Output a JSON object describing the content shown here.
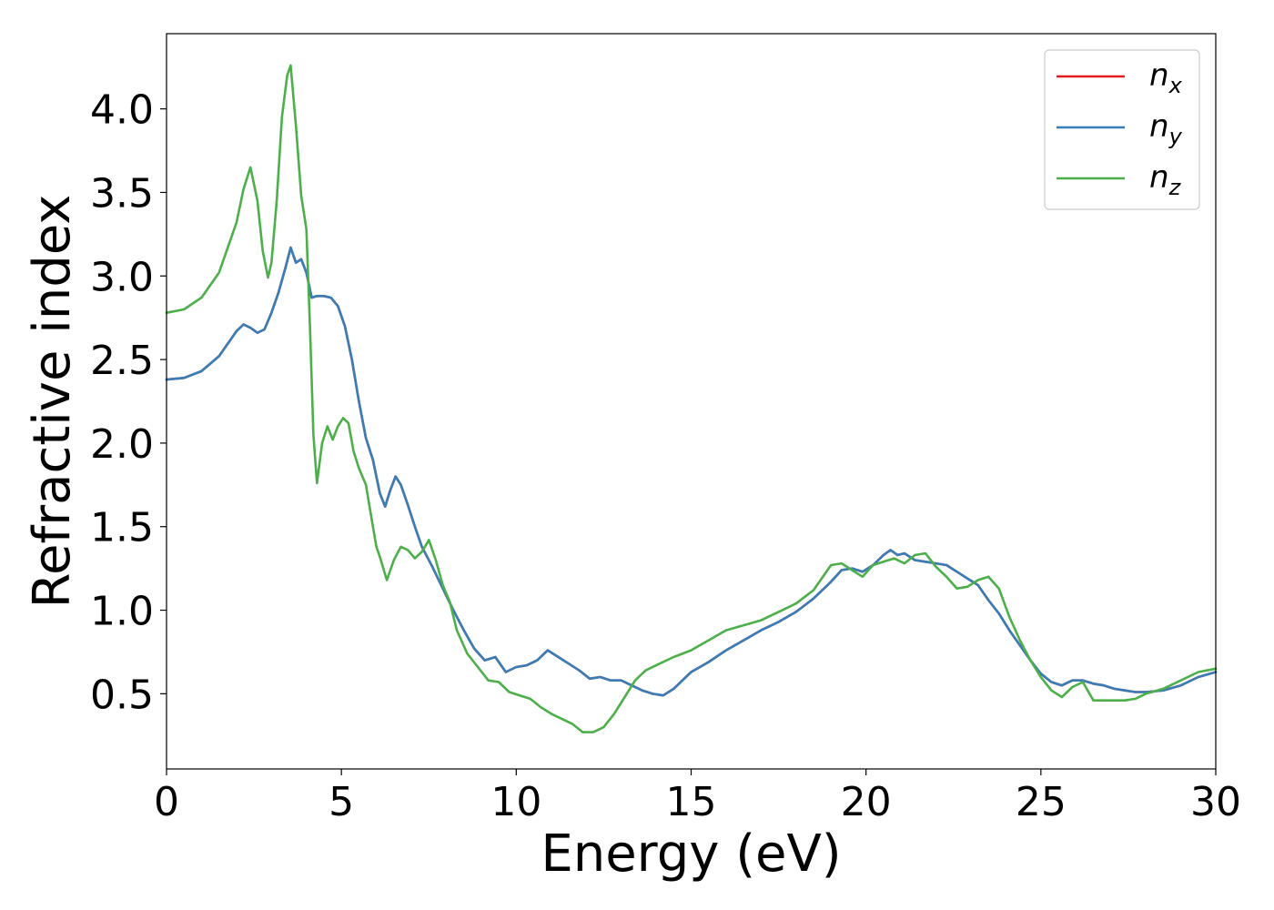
{
  "chart_data": {
    "type": "line",
    "xlabel": "Energy (eV)",
    "ylabel": "Refractive index",
    "xlim": [
      0,
      30
    ],
    "ylim": [
      0.05,
      4.45
    ],
    "xticks": [
      0,
      5,
      10,
      15,
      20,
      25,
      30
    ],
    "xtick_labels": [
      "0",
      "5",
      "10",
      "15",
      "20",
      "25",
      "30"
    ],
    "yticks": [
      0.5,
      1.0,
      1.5,
      2.0,
      2.5,
      3.0,
      3.5,
      4.0
    ],
    "ytick_labels": [
      "0.5",
      "1.0",
      "1.5",
      "2.0",
      "2.5",
      "3.0",
      "3.5",
      "4.0"
    ],
    "grid": false,
    "legend_position": "top-right",
    "series": [
      {
        "name": "n",
        "subscript": "x",
        "color": "#e41a1c",
        "x": [
          0,
          0.5,
          1,
          1.5,
          2,
          2.2,
          2.4,
          2.6,
          2.8,
          3.0,
          3.2,
          3.4,
          3.55,
          3.7,
          3.85,
          4.0,
          4.15,
          4.3,
          4.5,
          4.7,
          4.9,
          5.1,
          5.3,
          5.5,
          5.7,
          5.9,
          6.1,
          6.25,
          6.4,
          6.55,
          6.7,
          6.9,
          7.1,
          7.3,
          7.6,
          7.9,
          8.2,
          8.5,
          8.8,
          9.1,
          9.4,
          9.7,
          10.0,
          10.3,
          10.6,
          10.9,
          11.2,
          11.5,
          11.8,
          12.1,
          12.4,
          12.7,
          13.0,
          13.3,
          13.6,
          13.9,
          14.2,
          14.5,
          15.0,
          15.5,
          16.0,
          16.5,
          17.0,
          17.5,
          18.0,
          18.5,
          19.0,
          19.3,
          19.6,
          19.9,
          20.2,
          20.5,
          20.7,
          20.9,
          21.1,
          21.4,
          21.7,
          22.0,
          22.3,
          22.6,
          22.9,
          23.2,
          23.5,
          23.8,
          24.1,
          24.4,
          24.7,
          25.0,
          25.3,
          25.6,
          25.9,
          26.2,
          26.5,
          26.8,
          27.1,
          27.4,
          27.7,
          28.0,
          28.5,
          29.0,
          29.5,
          30.0
        ],
        "y": [
          2.38,
          2.39,
          2.43,
          2.52,
          2.67,
          2.71,
          2.69,
          2.66,
          2.68,
          2.78,
          2.9,
          3.05,
          3.17,
          3.08,
          3.1,
          3.02,
          2.87,
          2.88,
          2.88,
          2.87,
          2.82,
          2.7,
          2.5,
          2.25,
          2.03,
          1.9,
          1.7,
          1.62,
          1.72,
          1.8,
          1.75,
          1.63,
          1.5,
          1.38,
          1.26,
          1.13,
          1.0,
          0.88,
          0.77,
          0.7,
          0.72,
          0.63,
          0.66,
          0.67,
          0.7,
          0.76,
          0.72,
          0.68,
          0.64,
          0.59,
          0.6,
          0.58,
          0.58,
          0.55,
          0.52,
          0.5,
          0.49,
          0.53,
          0.63,
          0.69,
          0.76,
          0.82,
          0.88,
          0.93,
          0.99,
          1.07,
          1.17,
          1.24,
          1.25,
          1.23,
          1.27,
          1.33,
          1.36,
          1.33,
          1.34,
          1.3,
          1.29,
          1.28,
          1.27,
          1.23,
          1.19,
          1.15,
          1.06,
          0.98,
          0.88,
          0.79,
          0.7,
          0.62,
          0.57,
          0.55,
          0.58,
          0.58,
          0.56,
          0.55,
          0.53,
          0.52,
          0.51,
          0.51,
          0.52,
          0.55,
          0.6,
          0.63
        ]
      },
      {
        "name": "n",
        "subscript": "y",
        "color": "#377eb8",
        "x": [
          0,
          0.5,
          1,
          1.5,
          2,
          2.2,
          2.4,
          2.6,
          2.8,
          3.0,
          3.2,
          3.4,
          3.55,
          3.7,
          3.85,
          4.0,
          4.15,
          4.3,
          4.5,
          4.7,
          4.9,
          5.1,
          5.3,
          5.5,
          5.7,
          5.9,
          6.1,
          6.25,
          6.4,
          6.55,
          6.7,
          6.9,
          7.1,
          7.3,
          7.6,
          7.9,
          8.2,
          8.5,
          8.8,
          9.1,
          9.4,
          9.7,
          10.0,
          10.3,
          10.6,
          10.9,
          11.2,
          11.5,
          11.8,
          12.1,
          12.4,
          12.7,
          13.0,
          13.3,
          13.6,
          13.9,
          14.2,
          14.5,
          15.0,
          15.5,
          16.0,
          16.5,
          17.0,
          17.5,
          18.0,
          18.5,
          19.0,
          19.3,
          19.6,
          19.9,
          20.2,
          20.5,
          20.7,
          20.9,
          21.1,
          21.4,
          21.7,
          22.0,
          22.3,
          22.6,
          22.9,
          23.2,
          23.5,
          23.8,
          24.1,
          24.4,
          24.7,
          25.0,
          25.3,
          25.6,
          25.9,
          26.2,
          26.5,
          26.8,
          27.1,
          27.4,
          27.7,
          28.0,
          28.5,
          29.0,
          29.5,
          30.0
        ],
        "y": [
          2.38,
          2.39,
          2.43,
          2.52,
          2.67,
          2.71,
          2.69,
          2.66,
          2.68,
          2.78,
          2.9,
          3.05,
          3.17,
          3.08,
          3.1,
          3.02,
          2.87,
          2.88,
          2.88,
          2.87,
          2.82,
          2.7,
          2.5,
          2.25,
          2.03,
          1.9,
          1.7,
          1.62,
          1.72,
          1.8,
          1.75,
          1.63,
          1.5,
          1.38,
          1.26,
          1.13,
          1.0,
          0.88,
          0.77,
          0.7,
          0.72,
          0.63,
          0.66,
          0.67,
          0.7,
          0.76,
          0.72,
          0.68,
          0.64,
          0.59,
          0.6,
          0.58,
          0.58,
          0.55,
          0.52,
          0.5,
          0.49,
          0.53,
          0.63,
          0.69,
          0.76,
          0.82,
          0.88,
          0.93,
          0.99,
          1.07,
          1.17,
          1.24,
          1.25,
          1.23,
          1.27,
          1.33,
          1.36,
          1.33,
          1.34,
          1.3,
          1.29,
          1.28,
          1.27,
          1.23,
          1.19,
          1.15,
          1.06,
          0.98,
          0.88,
          0.79,
          0.7,
          0.62,
          0.57,
          0.55,
          0.58,
          0.58,
          0.56,
          0.55,
          0.53,
          0.52,
          0.51,
          0.51,
          0.52,
          0.55,
          0.6,
          0.63
        ]
      },
      {
        "name": "n",
        "subscript": "z",
        "color": "#4daf4a",
        "x": [
          0,
          0.5,
          1,
          1.5,
          2,
          2.2,
          2.4,
          2.6,
          2.75,
          2.9,
          3.0,
          3.15,
          3.3,
          3.45,
          3.55,
          3.7,
          3.85,
          4.0,
          4.1,
          4.2,
          4.3,
          4.45,
          4.6,
          4.75,
          4.9,
          5.05,
          5.2,
          5.35,
          5.5,
          5.7,
          5.9,
          6.0,
          6.1,
          6.3,
          6.5,
          6.7,
          6.9,
          7.1,
          7.3,
          7.5,
          7.7,
          7.9,
          8.1,
          8.3,
          8.6,
          8.9,
          9.2,
          9.5,
          9.8,
          10.1,
          10.4,
          10.7,
          11.0,
          11.3,
          11.6,
          11.9,
          12.2,
          12.5,
          12.8,
          13.1,
          13.4,
          13.7,
          14.0,
          14.5,
          15.0,
          15.5,
          16.0,
          16.5,
          17.0,
          17.5,
          18.0,
          18.5,
          19.0,
          19.3,
          19.6,
          19.9,
          20.2,
          20.5,
          20.8,
          21.1,
          21.4,
          21.7,
          22.0,
          22.3,
          22.6,
          22.9,
          23.2,
          23.5,
          23.8,
          24.1,
          24.4,
          24.7,
          25.0,
          25.3,
          25.6,
          25.9,
          26.2,
          26.5,
          26.8,
          27.1,
          27.4,
          27.7,
          28.0,
          28.5,
          29.0,
          29.5,
          30.0
        ],
        "y": [
          2.78,
          2.8,
          2.87,
          3.02,
          3.32,
          3.52,
          3.65,
          3.45,
          3.15,
          2.99,
          3.08,
          3.45,
          3.95,
          4.2,
          4.26,
          3.9,
          3.48,
          3.28,
          2.7,
          2.05,
          1.76,
          2.0,
          2.1,
          2.02,
          2.1,
          2.15,
          2.12,
          1.95,
          1.85,
          1.75,
          1.5,
          1.38,
          1.32,
          1.18,
          1.3,
          1.38,
          1.36,
          1.31,
          1.35,
          1.42,
          1.3,
          1.15,
          1.05,
          0.88,
          0.74,
          0.66,
          0.58,
          0.57,
          0.51,
          0.49,
          0.47,
          0.42,
          0.38,
          0.35,
          0.32,
          0.27,
          0.27,
          0.3,
          0.38,
          0.48,
          0.58,
          0.64,
          0.67,
          0.72,
          0.76,
          0.82,
          0.88,
          0.91,
          0.94,
          0.99,
          1.04,
          1.12,
          1.27,
          1.28,
          1.24,
          1.2,
          1.27,
          1.29,
          1.31,
          1.28,
          1.33,
          1.34,
          1.26,
          1.2,
          1.13,
          1.14,
          1.18,
          1.2,
          1.13,
          0.96,
          0.82,
          0.7,
          0.6,
          0.52,
          0.48,
          0.54,
          0.57,
          0.46,
          0.46,
          0.46,
          0.46,
          0.47,
          0.5,
          0.53,
          0.58,
          0.63,
          0.65
        ]
      }
    ]
  }
}
